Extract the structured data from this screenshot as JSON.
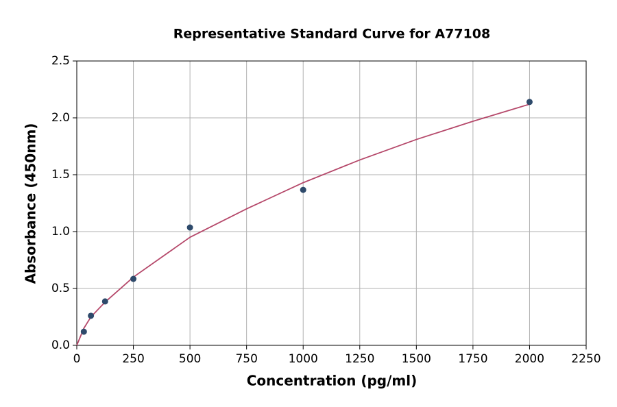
{
  "chart_data": {
    "type": "scatter",
    "title": "Representative Standard Curve for A77108",
    "x_label": "Concentration (pg/ml)",
    "y_label": "Absorbance (450nm)",
    "xlim": [
      0,
      2250
    ],
    "ylim": [
      0,
      2.5
    ],
    "xticks": [
      0,
      250,
      500,
      750,
      1000,
      1250,
      1500,
      1750,
      2000,
      2250
    ],
    "yticks": [
      {
        "value": 0,
        "label": "0.0"
      },
      0.5,
      {
        "value": 1,
        "label": "1.0"
      },
      1.5,
      {
        "value": 2,
        "label": "2.0"
      },
      2.5
    ],
    "grid": true,
    "series": [
      {
        "type": "line",
        "color": "#b5486a",
        "x": [
          0,
          31.25,
          62.5,
          125,
          250,
          500,
          750,
          1000,
          1250,
          1500,
          1750,
          2000
        ],
        "values": [
          0,
          0.15,
          0.25,
          0.38,
          0.6,
          0.95,
          1.2,
          1.43,
          1.63,
          1.81,
          1.97,
          2.12
        ]
      },
      {
        "type": "scatter",
        "color": "#2e4a6b",
        "x": [
          31.25,
          62.5,
          125,
          250,
          500,
          1000,
          2000
        ],
        "values": [
          0.12,
          0.26,
          0.386,
          0.584,
          1.036,
          1.367,
          2.14
        ]
      }
    ]
  }
}
